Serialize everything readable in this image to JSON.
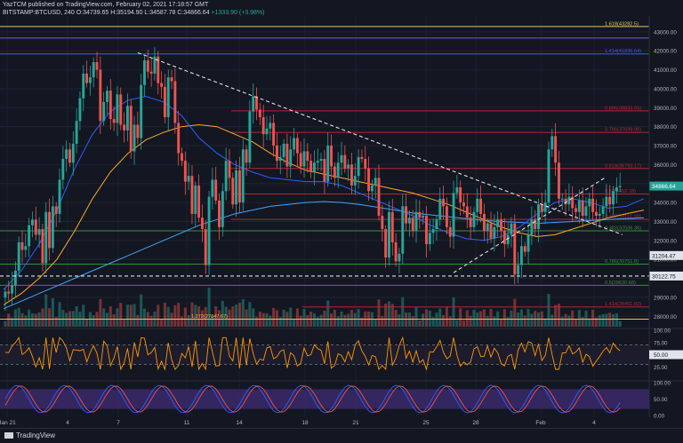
{
  "header": {
    "line1": "YazTCM published on TradingView.com, February 02, 2021 17:18:57 GMT",
    "line2_symbol": "BITSTAMP:BTCUSD, 240",
    "line2_price": "34866.64",
    "line2_change": "+1333.90 (+3.98%)",
    "line2_ohlc": "O:34739.65  H:35194.90  L:34587.78  C:34866.64"
  },
  "colors": {
    "background": "#131722",
    "bull": "#26a69a",
    "bear": "#ef5350",
    "fib_red": "#b22833",
    "fib_green": "#388e3c",
    "ema_blue": "#2962ff",
    "ema_orange": "#ffa726",
    "rsi": "#ff9800",
    "stoch_band": "#3d2a6e"
  },
  "footer": {
    "brand": "TradingView"
  },
  "chart_data": {
    "type": "candlestick",
    "price_axis": {
      "ticks": [
        "43000.00",
        "42000.00",
        "41000.00",
        "40000.00",
        "39000.00",
        "38000.00",
        "37000.00",
        "36000.00",
        "35000.00",
        "34000.00",
        "33000.00",
        "32000.00",
        "31000.00",
        "30000.00",
        "29000.00",
        "28000.00"
      ],
      "range": [
        27450,
        43650
      ]
    },
    "x_axis": {
      "ticks": [
        "Jan 21",
        "4",
        "7",
        "11",
        "14",
        "18",
        "21",
        "25",
        "28",
        "Feb",
        "4"
      ]
    },
    "current_price_label": "34866.64",
    "price_labels": [
      {
        "text": "31204.47",
        "price": 31204.47
      },
      {
        "text": "30122.75",
        "price": 30122.75
      }
    ],
    "fib_levels": [
      {
        "label": "1.618(43282.5)",
        "price": 43282.5,
        "group": "top"
      },
      {
        "label": "1.414(41836.64)",
        "price": 41836.64,
        "group": "ext"
      },
      {
        "label": "0.886(38835.55)",
        "price": 38835.55,
        "group": "red"
      },
      {
        "label": "0.786(37699.96)",
        "price": 37699.96,
        "group": "red"
      },
      {
        "label": "0.618(35793.17)",
        "price": 35793.17,
        "group": "red"
      },
      {
        "label": "0.5(34452.18)",
        "price": 34452.18,
        "group": "red"
      },
      {
        "label": "0.382(33112.18)",
        "price": 33112.18,
        "group": "red"
      },
      {
        "label": "0.382(32506.36)",
        "price": 32506.36,
        "group": "green"
      },
      {
        "label": "0.786(30751.8)",
        "price": 30751.8,
        "group": "green"
      },
      {
        "label": "0.5(29630.68)",
        "price": 29630.68,
        "group": "green"
      },
      {
        "label": "1.414(28491.82)",
        "price": 28491.82,
        "group": "red2"
      },
      {
        "label": "1.272(27847.67)",
        "price": 27847.67,
        "group": "orange"
      }
    ],
    "candles_close": [
      29300,
      29200,
      29650,
      30400,
      31900,
      31500,
      31700,
      32800,
      33100,
      32300,
      32600,
      30800,
      33500,
      31600,
      33800,
      33400,
      35200,
      36300,
      36800,
      36100,
      37100,
      38300,
      39500,
      40800,
      40300,
      40600,
      41400,
      41000,
      38300,
      39300,
      39900,
      38400,
      38200,
      39700,
      38100,
      37800,
      39100,
      36700,
      38100,
      37400,
      40200,
      41500,
      40900,
      40800,
      41700,
      40300,
      40100,
      38500,
      40600,
      40400,
      38200,
      36600,
      36200,
      35100,
      35400,
      33400,
      34900,
      33200,
      32600,
      30700,
      34300,
      35200,
      34100,
      32700,
      34600,
      36200,
      35300,
      33900,
      35700,
      34000,
      36800,
      36100,
      38800,
      39600,
      38900,
      38500,
      37600,
      37900,
      38200,
      37000,
      36200,
      36400,
      37100,
      35900,
      36800,
      37400,
      36600,
      35900,
      36700,
      36200,
      35600,
      36100,
      36200,
      36300,
      35100,
      37000,
      35900,
      35300,
      36100,
      36500,
      35800,
      36000,
      34900,
      35400,
      36400,
      36300,
      35800,
      34600,
      34900,
      35300,
      33300,
      32600,
      31100,
      33500,
      31900,
      30900,
      31300,
      33800,
      32900,
      33200,
      32500,
      33500,
      33200,
      33300,
      31800,
      32400,
      32600,
      33100,
      34200,
      33800,
      32700,
      32200,
      34500,
      34800,
      34000,
      33800,
      33200,
      32700,
      33500,
      34200,
      33400,
      32500,
      32900,
      32100,
      32700,
      33100,
      32500,
      31800,
      32300,
      32900,
      30200,
      30700,
      31700,
      31400,
      32300,
      33100,
      32600,
      33900,
      33500,
      34000,
      36800,
      37500,
      36100,
      34200,
      34200,
      33900,
      34300,
      33700,
      33500,
      34100,
      33300,
      33800,
      34200,
      33500,
      33300,
      33400,
      33800,
      34300,
      33900,
      34600,
      34800,
      34866.64
    ],
    "ema_200": [
      28400,
      28800,
      29200,
      29600,
      30000,
      30400,
      30800,
      31200,
      31600,
      32000,
      32400,
      32800,
      33100,
      33400,
      33600,
      33800,
      33900,
      34000,
      34050,
      34000,
      33900,
      33750,
      33600,
      33450,
      33350,
      33250,
      33150,
      33050,
      33000,
      32950,
      32900,
      32950,
      33000,
      33050,
      33100,
      33150,
      33200
    ],
    "ema_100": [
      28600,
      29200,
      30000,
      31000,
      32500,
      34200,
      35600,
      36600,
      37300,
      37700,
      38000,
      38100,
      38000,
      37600,
      37200,
      36600,
      36100,
      35700,
      35500,
      35300,
      35100,
      34900,
      34700,
      34500,
      34200,
      33900,
      33500,
      33100,
      32700,
      32400,
      32200,
      32300,
      32600,
      32900,
      33200,
      33400,
      33600
    ],
    "ema_50": [
      29400,
      30400,
      31800,
      33600,
      35800,
      37600,
      38800,
      39400,
      39600,
      39300,
      38600,
      37400,
      36600,
      36000,
      35600,
      35300,
      35200,
      35100,
      35100,
      34900,
      34500,
      34100,
      33700,
      33300,
      32800,
      32400,
      32100,
      32000,
      32200,
      32700,
      33400,
      34000,
      34200,
      34000,
      33700,
      33800,
      34200
    ]
  },
  "rsi_panel": {
    "ticks": [
      "100.00",
      "75.00",
      "50.00",
      "25.00"
    ],
    "current_label": "50.00"
  },
  "stoch_panel": {
    "ticks": [
      "100.00",
      "50.00",
      "0.00"
    ]
  }
}
